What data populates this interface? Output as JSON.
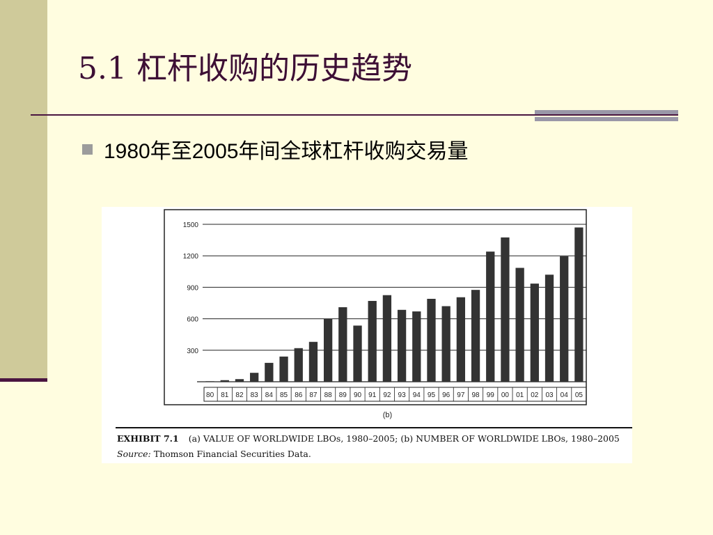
{
  "slide": {
    "title": "5.1 杠杆收购的历史趋势",
    "bullet": "1980年至2005年间全球杠杆收购交易量"
  },
  "figure": {
    "panel_label": "(b)",
    "exhibit_label": "EXHIBIT 7.1",
    "caption": "(a) VALUE OF WORLDWIDE LBOs, 1980–2005; (b) NUMBER OF WORLDWIDE LBOs, 1980–2005",
    "source_label": "Source:",
    "source_text": "Thomson Financial Securities Data."
  },
  "chart_data": {
    "type": "bar",
    "title": "",
    "xlabel": "",
    "ylabel": "",
    "categories": [
      "80",
      "81",
      "82",
      "83",
      "84",
      "85",
      "86",
      "87",
      "88",
      "89",
      "90",
      "91",
      "92",
      "93",
      "94",
      "95",
      "96",
      "97",
      "98",
      "99",
      "00",
      "01",
      "02",
      "03",
      "04",
      "05"
    ],
    "values": [
      5,
      15,
      25,
      85,
      180,
      240,
      320,
      380,
      600,
      710,
      535,
      770,
      825,
      685,
      670,
      790,
      720,
      805,
      875,
      1240,
      1375,
      1085,
      935,
      1020,
      1195,
      1470
    ],
    "yticks": [
      "300",
      "600",
      "900",
      "1200",
      "1500"
    ],
    "ylim": [
      0,
      1500
    ],
    "grid": true,
    "bar_color": "#333333"
  }
}
